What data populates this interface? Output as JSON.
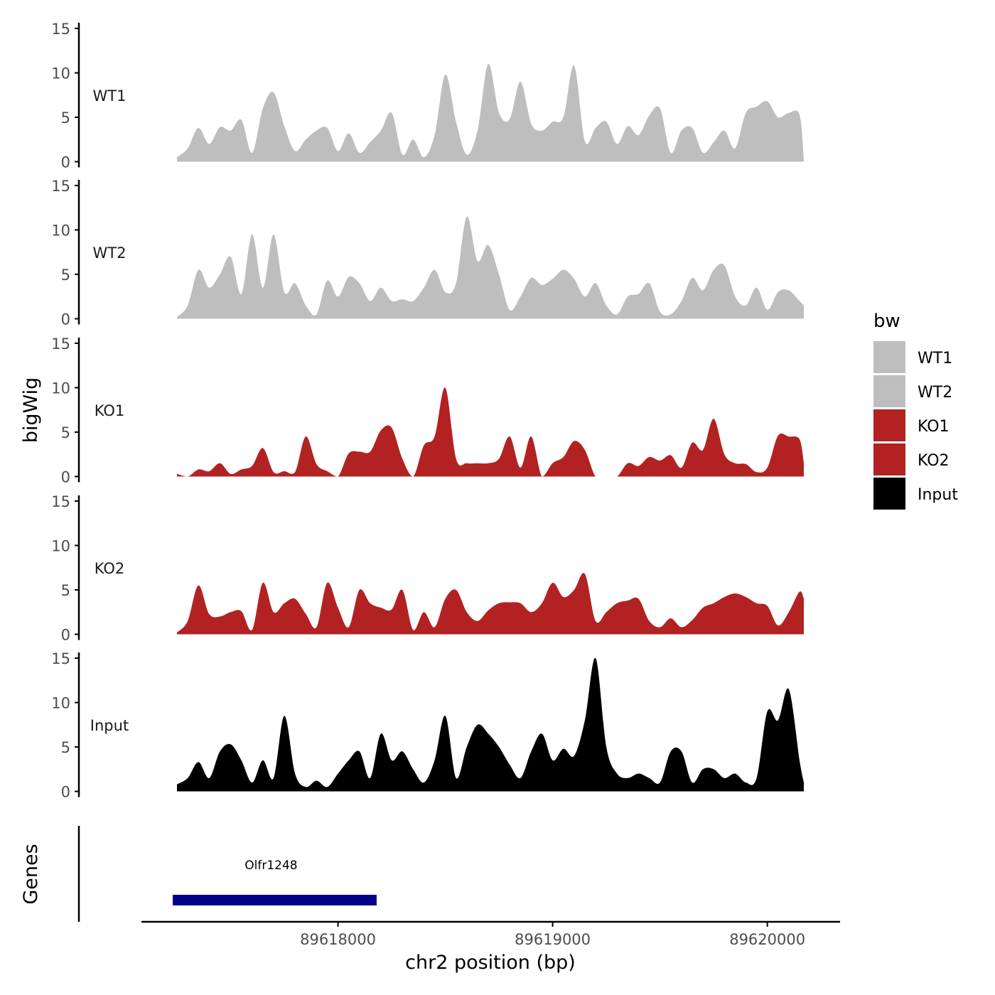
{
  "chart_data": {
    "type": "area",
    "title": "",
    "xlabel": "chr2 position (bp)",
    "ylabel": "bigWig",
    "genes_label": "Genes",
    "x_range": [
      89617250,
      89620170
    ],
    "x_ticks": [
      89618000,
      89619000,
      89620000
    ],
    "x_tick_labels": [
      "89618000",
      "89619000",
      "89620000"
    ],
    "ylim": [
      0,
      15
    ],
    "y_ticks": [
      0,
      5,
      10,
      15
    ],
    "y_tick_labels": [
      "0",
      "5",
      "10",
      "15"
    ],
    "legend": {
      "title": "bw",
      "position": "right",
      "entries": [
        {
          "label": "WT1",
          "color": "#bebebe"
        },
        {
          "label": "WT2",
          "color": "#bebebe"
        },
        {
          "label": "KO1",
          "color": "#b22222"
        },
        {
          "label": "KO2",
          "color": "#b22222"
        },
        {
          "label": "Input",
          "color": "#000000"
        }
      ]
    },
    "x": [
      89617250,
      89617300,
      89617350,
      89617400,
      89617450,
      89617500,
      89617550,
      89617600,
      89617650,
      89617700,
      89617750,
      89617800,
      89617850,
      89617900,
      89617950,
      89618000,
      89618050,
      89618100,
      89618150,
      89618200,
      89618250,
      89618300,
      89618350,
      89618400,
      89618450,
      89618500,
      89618550,
      89618600,
      89618650,
      89618700,
      89618750,
      89618800,
      89618850,
      89618900,
      89618950,
      89619000,
      89619050,
      89619100,
      89619150,
      89619200,
      89619250,
      89619300,
      89619350,
      89619400,
      89619450,
      89619500,
      89619550,
      89619600,
      89619650,
      89619700,
      89619750,
      89619800,
      89619850,
      89619900,
      89619950,
      89620000,
      89620050,
      89620100,
      89620150,
      89620170
    ],
    "series": [
      {
        "name": "WT1",
        "color": "#bebebe",
        "values": [
          0.5,
          1.5,
          3.8,
          2.0,
          3.9,
          3.5,
          4.7,
          1.0,
          6.0,
          7.8,
          4.0,
          1.2,
          2.5,
          3.5,
          3.8,
          1.2,
          3.2,
          1.0,
          2.2,
          3.5,
          5.5,
          0.8,
          2.5,
          0.5,
          3.0,
          9.8,
          4.5,
          0.8,
          3.5,
          11.0,
          5.5,
          4.8,
          9.0,
          4.3,
          3.5,
          4.5,
          5.0,
          10.8,
          2.3,
          3.8,
          4.5,
          2.0,
          4.0,
          3.0,
          5.2,
          6.0,
          1.0,
          3.5,
          3.8,
          1.0,
          2.2,
          3.5,
          1.5,
          5.5,
          6.2,
          6.8,
          5.0,
          5.5,
          5.3,
          0.3
        ]
      },
      {
        "name": "WT2",
        "color": "#bebebe",
        "values": [
          0.2,
          1.5,
          5.5,
          3.5,
          5.0,
          7.0,
          2.8,
          9.5,
          3.5,
          9.5,
          3.0,
          4.0,
          1.5,
          0.5,
          4.3,
          2.5,
          4.7,
          4.0,
          2.0,
          3.5,
          2.0,
          2.2,
          2.0,
          3.5,
          5.5,
          3.0,
          4.0,
          11.5,
          6.5,
          8.3,
          5.0,
          1.0,
          2.5,
          4.6,
          3.8,
          4.5,
          5.5,
          4.5,
          2.5,
          4.0,
          1.5,
          0.5,
          2.5,
          2.8,
          4.0,
          0.8,
          0.5,
          2.0,
          4.6,
          3.2,
          5.5,
          6.0,
          2.5,
          1.5,
          3.5,
          1.0,
          3.0,
          3.2,
          2.0,
          1.5
        ]
      },
      {
        "name": "KO1",
        "color": "#b22222",
        "values": [
          0.3,
          0,
          0.8,
          0.6,
          1.5,
          0.3,
          0.8,
          1.2,
          3.2,
          0.5,
          0.6,
          0.5,
          4.5,
          1.4,
          0.6,
          0,
          2.6,
          2.8,
          2.8,
          5.2,
          5.5,
          2.0,
          0,
          3.5,
          4.5,
          10.0,
          2.0,
          1.5,
          1.5,
          1.5,
          2.0,
          4.5,
          1.0,
          4.5,
          0,
          1.5,
          2.2,
          4.0,
          3.0,
          0,
          0,
          0,
          1.5,
          1.2,
          2.2,
          1.8,
          2.4,
          1.0,
          3.8,
          3.0,
          6.5,
          2.5,
          1.5,
          1.4,
          0.5,
          1.0,
          4.6,
          4.5,
          4.2,
          1.5
        ]
      },
      {
        "name": "KO2",
        "color": "#b22222",
        "values": [
          0.2,
          1.5,
          5.5,
          2.3,
          2.0,
          2.5,
          2.6,
          0.5,
          5.8,
          2.5,
          3.5,
          4.0,
          2.3,
          0.8,
          5.8,
          3.0,
          0.8,
          5.0,
          3.5,
          3.0,
          2.8,
          5.0,
          0.5,
          2.5,
          0.8,
          4.0,
          5.0,
          2.5,
          1.5,
          2.7,
          3.5,
          3.6,
          3.5,
          2.5,
          3.5,
          5.8,
          4.2,
          5.0,
          6.8,
          1.5,
          2.5,
          3.5,
          3.8,
          4.0,
          1.5,
          0.8,
          1.8,
          0.8,
          1.6,
          3.0,
          3.5,
          4.2,
          4.6,
          4.2,
          3.5,
          3.2,
          1.0,
          2.5,
          4.8,
          4.0
        ]
      },
      {
        "name": "Input",
        "color": "#000000",
        "values": [
          0.8,
          1.5,
          3.3,
          1.5,
          4.5,
          5.3,
          3.5,
          1.0,
          3.5,
          1.5,
          8.5,
          2.0,
          0.5,
          1.2,
          0.5,
          2.0,
          3.5,
          4.5,
          1.5,
          6.5,
          3.5,
          4.5,
          2.5,
          1.0,
          3.5,
          8.5,
          1.5,
          5.0,
          7.5,
          6.5,
          5.0,
          3.0,
          1.5,
          4.5,
          6.5,
          3.5,
          4.8,
          4.0,
          8.0,
          15.0,
          5.0,
          2.0,
          1.5,
          2.0,
          1.5,
          1.0,
          4.5,
          4.5,
          1.0,
          2.5,
          2.5,
          1.5,
          2.0,
          1.0,
          1.5,
          9.0,
          8.0,
          11.5,
          3.5,
          1.0
        ]
      }
    ],
    "genes": [
      {
        "name": "Olfr1248",
        "start": 89617250,
        "end": 89618180,
        "color": "#00008b"
      }
    ]
  }
}
